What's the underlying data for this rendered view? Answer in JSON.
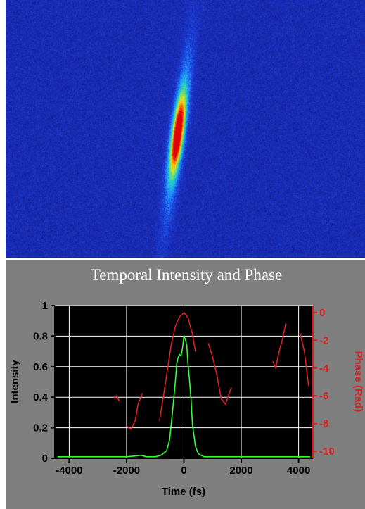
{
  "chart_data": [
    {
      "type": "heatmap",
      "title": "",
      "xlabel": "",
      "ylabel": "",
      "colormap": [
        "#1a1a9e",
        "#1c3fd6",
        "#1e90ff",
        "#22d3c7",
        "#7be05a",
        "#f2e31e",
        "#ff8a00",
        "#e00000"
      ],
      "background_color": "#1a2db8"
    },
    {
      "type": "line",
      "title": "Temporal Intensity and Phase",
      "xlabel": "Time (fs)",
      "ylabel": "Intensity",
      "y2label": "Phase (Rad)",
      "xlim": [
        -4500,
        4500
      ],
      "ylim": [
        0,
        1
      ],
      "y2lim": [
        -10.5,
        0.5
      ],
      "xticks": [
        -4000,
        -2000,
        0,
        2000,
        4000
      ],
      "yticks": [
        0,
        0.2,
        0.4,
        0.6,
        0.8,
        1
      ],
      "y2ticks": [
        -10,
        -8,
        -6,
        -4,
        -2,
        0
      ],
      "xtick_labels": [
        "-4000",
        "-2000",
        "0",
        "2000",
        "4000"
      ],
      "ytick_labels": [
        "0",
        "0.2",
        "0.4",
        "0.6",
        "0.8",
        "1"
      ],
      "y2tick_labels": [
        "-10",
        "-8",
        "-6",
        "-4",
        "-2",
        "0"
      ],
      "grid": true,
      "colors": {
        "intensity": "#33ff33",
        "phase": "#dd2020",
        "plot_bg": "#000000",
        "grid": "#ffffff",
        "panel_bg": "#7f7f7f"
      },
      "series": [
        {
          "axis": "left",
          "x": [
            -4400,
            -3000,
            -2000,
            -1700,
            -1500,
            -1300,
            -1000,
            -800,
            -600,
            -500,
            -400,
            -300,
            -250,
            -200,
            -150,
            -100,
            -50,
            0,
            50,
            100,
            150,
            200,
            250,
            300,
            400,
            500,
            700,
            1000,
            2000,
            3000,
            4000,
            4400
          ],
          "y": [
            0.01,
            0.01,
            0.01,
            0.015,
            0.02,
            0.01,
            0.01,
            0.02,
            0.05,
            0.12,
            0.3,
            0.5,
            0.62,
            0.66,
            0.68,
            0.67,
            0.72,
            0.8,
            0.78,
            0.74,
            0.6,
            0.5,
            0.38,
            0.22,
            0.08,
            0.03,
            0.01,
            0.01,
            0.01,
            0.01,
            0.01,
            0.01
          ]
        },
        {
          "axis": "right",
          "segments": [
            {
              "x": [
                -2450,
                -2350,
                -2250
              ],
              "y": [
                -6.2,
                -6.0,
                -6.4
              ]
            },
            {
              "x": [
                -2000,
                -1850,
                -1700,
                -1600,
                -1450
              ],
              "y": [
                -8.2,
                -8.4,
                -7.8,
                -6.6,
                -5.8
              ]
            },
            {
              "x": [
                -850,
                -750,
                -600,
                -450,
                -300,
                -150,
                0,
                150,
                300,
                400
              ],
              "y": [
                -7.8,
                -6.5,
                -4.5,
                -2.4,
                -1.0,
                -0.3,
                0.0,
                -0.4,
                -1.6,
                -2.8
              ]
            },
            {
              "x": [
                850,
                1000,
                1150,
                1300,
                1450,
                1650
              ],
              "y": [
                -2.2,
                -3.2,
                -4.5,
                -6.2,
                -6.6,
                -5.4
              ]
            },
            {
              "x": [
                3100,
                3200,
                3300,
                3450,
                3550
              ],
              "y": [
                -3.5,
                -4.0,
                -3.0,
                -1.8,
                -0.8
              ]
            },
            {
              "x": [
                4050,
                4200,
                4350
              ],
              "y": [
                -1.5,
                -2.8,
                -5.3
              ]
            }
          ]
        }
      ]
    }
  ]
}
